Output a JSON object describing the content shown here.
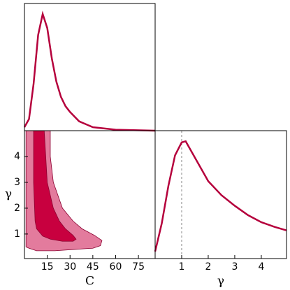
{
  "chart_data": [
    {
      "type": "line",
      "color": "#b5003c",
      "x": [
        0,
        3,
        6,
        9,
        12,
        15,
        18,
        21,
        24,
        27,
        30,
        36,
        45,
        60,
        86
      ],
      "values": [
        0.03,
        0.1,
        0.4,
        0.82,
        1.0,
        0.88,
        0.62,
        0.42,
        0.29,
        0.21,
        0.16,
        0.08,
        0.03,
        0.008,
        0
      ],
      "xlim": [
        0,
        86
      ],
      "ylim": [
        0,
        1.09
      ]
    },
    {
      "type": "contour",
      "xlabel": "C",
      "ylabel": "γ",
      "xlim": [
        0,
        86
      ],
      "ylim": [
        0.05,
        5
      ],
      "xticks": [
        15,
        30,
        45,
        60,
        75
      ],
      "yticks": [
        1,
        2,
        3,
        4
      ],
      "contours": [
        {
          "color": "#e37b9d",
          "x": [
            1,
            1,
            4,
            17,
            17,
            19,
            25,
            32,
            38,
            46,
            51,
            50,
            45,
            32,
            20,
            8,
            3,
            1
          ],
          "y": [
            0.5,
            5,
            5,
            5,
            4,
            3,
            2,
            1.5,
            1.2,
            0.95,
            0.75,
            0.55,
            0.45,
            0.4,
            0.35,
            0.35,
            0.45,
            0.5
          ]
        },
        {
          "color": "#c8003f",
          "x": [
            6,
            13,
            14,
            15,
            19,
            23,
            27,
            32,
            34,
            32,
            25,
            17,
            12,
            8,
            7,
            6,
            6
          ],
          "y": [
            5,
            5,
            4,
            3,
            2,
            1.5,
            1.2,
            0.95,
            0.8,
            0.72,
            0.72,
            0.8,
            0.92,
            1.2,
            1.5,
            3,
            5
          ]
        }
      ]
    },
    {
      "type": "line",
      "color": "#b5003c",
      "xlabel": "γ",
      "x": [
        0,
        0.25,
        0.5,
        0.75,
        1.0,
        1.15,
        1.5,
        2,
        2.5,
        3,
        3.5,
        4,
        4.5,
        4.95
      ],
      "values": [
        0.06,
        0.3,
        0.62,
        0.88,
        0.99,
        1.0,
        0.86,
        0.66,
        0.54,
        0.45,
        0.37,
        0.31,
        0.27,
        0.24
      ],
      "xlim": [
        0,
        4.95
      ],
      "ylim": [
        0,
        1.09
      ],
      "xticks": [
        1,
        2,
        3,
        4
      ],
      "reference_line": 1
    }
  ]
}
